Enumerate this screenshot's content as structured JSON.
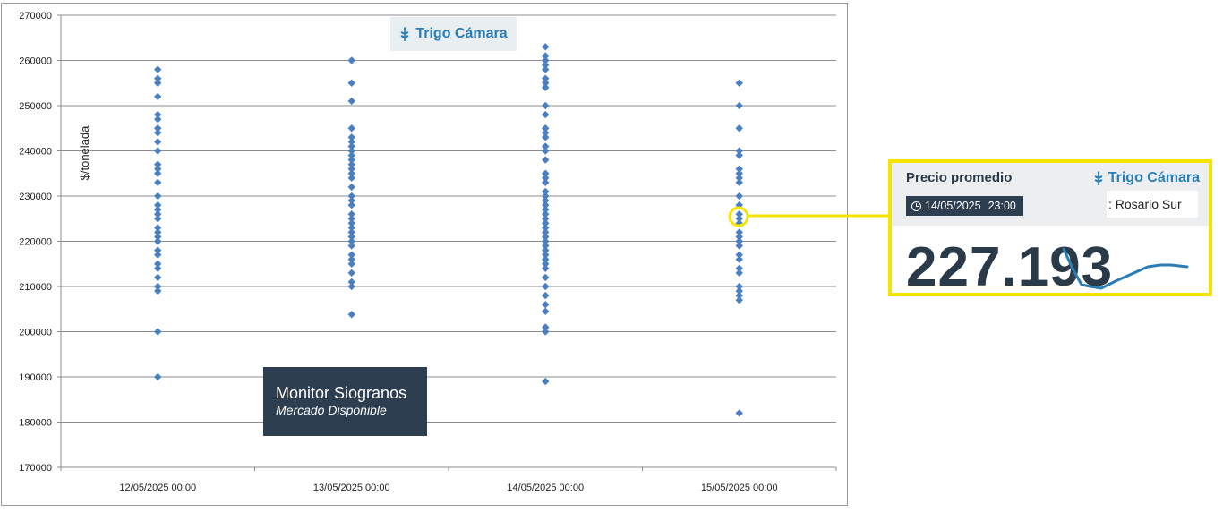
{
  "chart_data": {
    "type": "scatter",
    "title": "",
    "xlabel": "",
    "ylabel": "$/tonelada",
    "ylim": [
      170000,
      270000
    ],
    "yticks": [
      "170000",
      "180000",
      "190000",
      "200000",
      "210000",
      "220000",
      "230000",
      "240000",
      "250000",
      "260000",
      "270000"
    ],
    "ytick_values": [
      170000,
      180000,
      190000,
      200000,
      210000,
      220000,
      230000,
      240000,
      250000,
      260000,
      270000
    ],
    "categories": [
      "12/05/2025 00:00",
      "13/05/2025 00:00",
      "14/05/2025 00:00",
      "15/05/2025 00:00"
    ],
    "grid": true,
    "marker": "diamond",
    "color": "#4a7fc1",
    "series": [
      {
        "values": [
          258000,
          256000,
          255000,
          252000,
          248000,
          247000,
          245000,
          244000,
          242000,
          240000,
          237000,
          236000,
          235000,
          233000,
          230000,
          228000,
          227000,
          226000,
          225000,
          223000,
          222000,
          221000,
          220000,
          218000,
          217000,
          215000,
          214000,
          212000,
          210000,
          209000,
          200000,
          190000
        ]
      },
      {
        "values": [
          260000,
          255000,
          251000,
          245000,
          243000,
          242000,
          241000,
          240000,
          239000,
          238000,
          237000,
          236000,
          235000,
          234000,
          232000,
          230000,
          229000,
          228000,
          226000,
          225000,
          224000,
          223000,
          222000,
          221000,
          220000,
          219000,
          217000,
          216000,
          215000,
          213000,
          211000,
          210000,
          203800
        ]
      },
      {
        "values": [
          263000,
          261000,
          260000,
          259000,
          258000,
          256000,
          255000,
          254000,
          250000,
          248000,
          245000,
          244000,
          243000,
          241000,
          240000,
          238000,
          235000,
          234000,
          233000,
          231000,
          230000,
          229000,
          228000,
          227000,
          226000,
          225000,
          224000,
          223000,
          222000,
          221000,
          220000,
          219000,
          218000,
          217000,
          216000,
          215000,
          214000,
          212000,
          210000,
          208000,
          206000,
          204500,
          201000,
          200000,
          189000
        ]
      },
      {
        "values": [
          255000,
          250000,
          245000,
          240000,
          239000,
          236000,
          235000,
          234000,
          233000,
          230000,
          228000,
          226000,
          225000,
          224000,
          222000,
          221000,
          220000,
          219000,
          217000,
          216000,
          214000,
          213000,
          210000,
          209000,
          208000,
          207000,
          182000
        ]
      }
    ],
    "highlight": {
      "category_index": 3,
      "value": 225000
    }
  },
  "brand": {
    "name": "Trigo Cámara",
    "icon": "wheat-icon",
    "color": "#2a7db5"
  },
  "monitor": {
    "title": "Monitor Siogranos",
    "subtitle": "Mercado Disponible"
  },
  "card": {
    "title": "Precio promedio",
    "brand": "Trigo Cámara",
    "date": "14/05/2025",
    "time": "23:00",
    "location": ": Rosario Sur",
    "value": "227.193",
    "border_color": "#f4e400",
    "spark_color": "#2a7db5"
  }
}
